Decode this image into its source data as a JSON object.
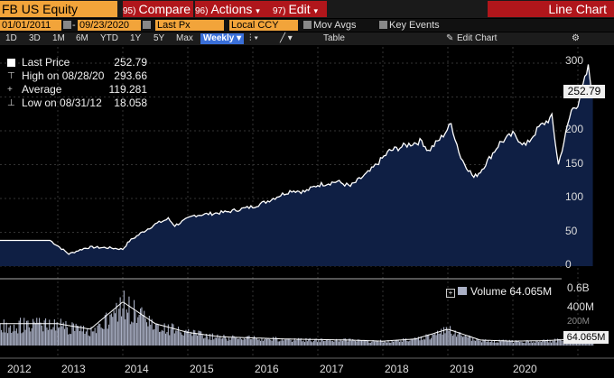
{
  "toolbar": {
    "ticker": "FB US Equity",
    "compare_num": "95)",
    "compare": "Compare",
    "actions_num": "96)",
    "actions": "Actions",
    "edit_num": "97)",
    "edit": "Edit",
    "title": "Line Chart"
  },
  "params": {
    "start_date": "01/01/2011",
    "end_date": "09/23/2020",
    "field": "Last Px",
    "currency": "Local CCY",
    "mov_avgs": "Mov Avgs",
    "key_events": "Key Events"
  },
  "ranges": [
    "1D",
    "3D",
    "1M",
    "6M",
    "YTD",
    "1Y",
    "5Y",
    "Max"
  ],
  "period": "Weekly",
  "table_label": "Table",
  "edit_chart": "Edit Chart",
  "legend": {
    "last_label": "Last Price",
    "last_value": "252.79",
    "high_label": "High on 08/28/20",
    "high_value": "293.66",
    "avg_label": "Average",
    "avg_value": "119.281",
    "low_label": "Low on 08/31/12",
    "low_value": "18.058"
  },
  "price_axis": [
    "300",
    "250",
    "200",
    "150",
    "100",
    "50",
    "0"
  ],
  "last_box": "252.79",
  "volume": {
    "label": "Volume",
    "value": "64.065M",
    "axis": [
      "0.6B",
      "400M",
      "200M"
    ],
    "last_box": "64.065M"
  },
  "years": [
    "2012",
    "2013",
    "2014",
    "2015",
    "2016",
    "2017",
    "2018",
    "2019",
    "2020"
  ],
  "colors": {
    "orange": "#f2a43a",
    "red": "#b0161b",
    "fill": "#0f1f44",
    "volume": "#a9afc4"
  },
  "chart_data": {
    "type": "area",
    "ylim": [
      0,
      310
    ],
    "xlim": [
      2011.4,
      2020.75
    ],
    "series": [
      {
        "name": "Last Price",
        "x": [
          2012.38,
          2012.5,
          2012.67,
          2012.9,
          2013.0,
          2013.3,
          2013.5,
          2013.6,
          2013.8,
          2014.0,
          2014.2,
          2014.3,
          2014.6,
          2014.9,
          2015.1,
          2015.5,
          2015.7,
          2015.9,
          2016.1,
          2016.3,
          2016.5,
          2016.8,
          2017.0,
          2017.3,
          2017.6,
          2017.9,
          2018.1,
          2018.2,
          2018.4,
          2018.55,
          2018.7,
          2018.9,
          2019.0,
          2019.3,
          2019.5,
          2019.7,
          2019.9,
          2020.1,
          2020.2,
          2020.4,
          2020.5,
          2020.66,
          2020.73
        ],
        "y": [
          38,
          30,
          18,
          26,
          28,
          27,
          25,
          37,
          50,
          62,
          70,
          60,
          75,
          78,
          80,
          88,
          95,
          104,
          112,
          110,
          120,
          125,
          118,
          140,
          170,
          180,
          185,
          170,
          190,
          210,
          160,
          131,
          140,
          182,
          195,
          178,
          205,
          220,
          150,
          230,
          240,
          293,
          252.79
        ]
      },
      {
        "name": "Volume",
        "x": [
          2012.5,
          2013.0,
          2013.5,
          2014.0,
          2014.5,
          2015.0,
          2015.5,
          2016.0,
          2016.5,
          2017.0,
          2017.5,
          2018.0,
          2018.5,
          2019.0,
          2019.5,
          2020.0,
          2020.5,
          2020.73
        ],
        "y": [
          200,
          150,
          400,
          200,
          120,
          80,
          70,
          60,
          55,
          50,
          40,
          60,
          150,
          50,
          40,
          45,
          60,
          64.065
        ]
      }
    ]
  }
}
